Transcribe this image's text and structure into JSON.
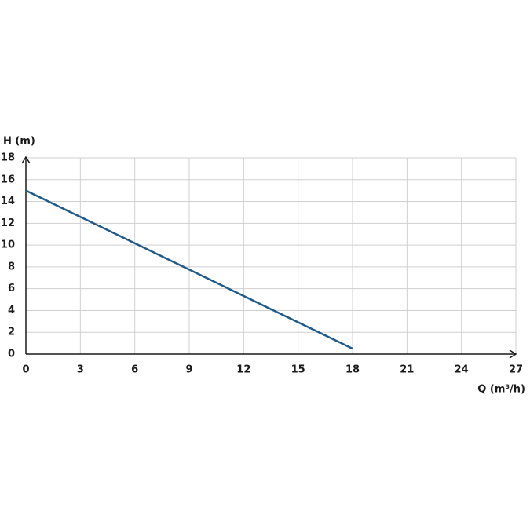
{
  "chart_data": {
    "type": "line",
    "ylabel": "H (m)",
    "xlabel": "Q (m³/h)",
    "x": [
      0,
      18
    ],
    "series": [
      {
        "name": "H",
        "color": "#1f5a8a",
        "values": [
          15,
          0.5
        ]
      }
    ],
    "xlim": [
      0,
      27
    ],
    "xticks": [
      0,
      3,
      6,
      9,
      12,
      15,
      18,
      21,
      24,
      27
    ],
    "ylim": [
      0,
      18
    ],
    "yticks": [
      0,
      2,
      4,
      6,
      8,
      10,
      12,
      14,
      16,
      18
    ],
    "grid": true
  }
}
